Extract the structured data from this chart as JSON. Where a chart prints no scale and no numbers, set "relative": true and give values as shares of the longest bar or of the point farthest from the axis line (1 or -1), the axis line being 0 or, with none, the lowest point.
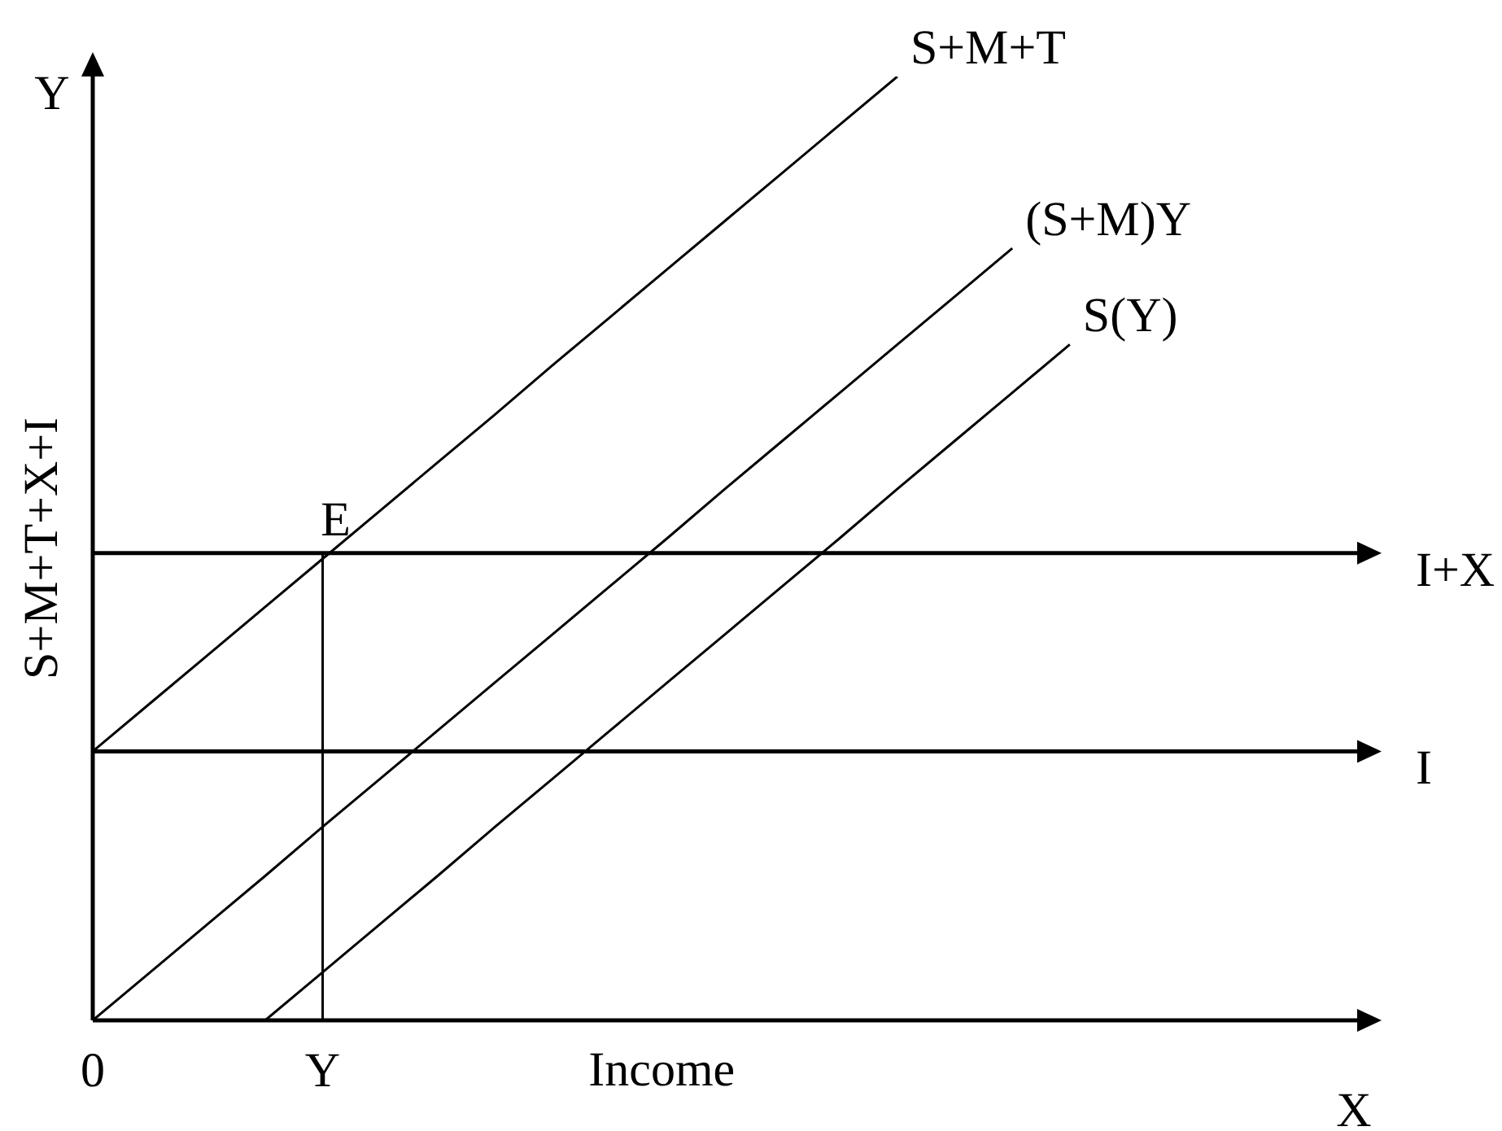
{
  "chart_data": {
    "type": "line",
    "relative": true,
    "xlabel": "Income",
    "ylabel": "S+M+T+X+I",
    "categories": [
      "0",
      null,
      null,
      null,
      "Y",
      null,
      null,
      null,
      null,
      null,
      null,
      null,
      null,
      null,
      null,
      null,
      null,
      null,
      null,
      null,
      null,
      null,
      null
    ],
    "series": [
      {
        "name": "S+M+T",
        "color": "#000000",
        "values": [
          0.285,
          0.336,
          0.387,
          0.438,
          0.489,
          0.54,
          0.591,
          0.642,
          0.694,
          0.745,
          0.796,
          0.847,
          0.898,
          0.949,
          1.0,
          null,
          null,
          null,
          null,
          null,
          null,
          null,
          null
        ]
      },
      {
        "name": "(S+M)Y",
        "color": "#000000",
        "values": [
          0,
          0.051,
          0.102,
          0.153,
          0.205,
          0.256,
          0.307,
          0.358,
          0.409,
          0.46,
          0.511,
          0.563,
          0.614,
          0.665,
          0.716,
          0.767,
          0.818,
          null,
          null,
          null,
          null,
          null,
          null
        ]
      },
      {
        "name": "S(Y)",
        "color": "#000000",
        "values": [
          null,
          null,
          null,
          0,
          0.051,
          0.102,
          0.153,
          0.205,
          0.256,
          0.307,
          0.358,
          0.409,
          0.46,
          0.511,
          0.563,
          0.614,
          0.665,
          0.716,
          null,
          null,
          null,
          null,
          null
        ]
      },
      {
        "name": "I+X",
        "color": "#000000",
        "values": [
          0.495,
          0.495,
          0.495,
          0.495,
          0.495,
          0.495,
          0.495,
          0.495,
          0.495,
          0.495,
          0.495,
          0.495,
          0.495,
          0.495,
          0.495,
          0.495,
          0.495,
          0.495,
          0.495,
          0.495,
          0.495,
          0.495,
          0.495
        ]
      },
      {
        "name": "I",
        "color": "#000000",
        "values": [
          0.285,
          0.285,
          0.285,
          0.285,
          0.285,
          0.285,
          0.285,
          0.285,
          0.285,
          0.285,
          0.285,
          0.285,
          0.285,
          0.285,
          0.285,
          0.285,
          0.285,
          0.285,
          0.285,
          0.285,
          0.285,
          0.285,
          0.285
        ]
      },
      {
        "type": "line",
        "color": "#000000",
        "x": [
          "Y",
          "Y"
        ],
        "values": [
          0,
          0.495
        ]
      }
    ],
    "annotations": [
      "Y",
      "X",
      {
        "text": "E",
        "x": "Y",
        "y": 0.495
      }
    ]
  }
}
